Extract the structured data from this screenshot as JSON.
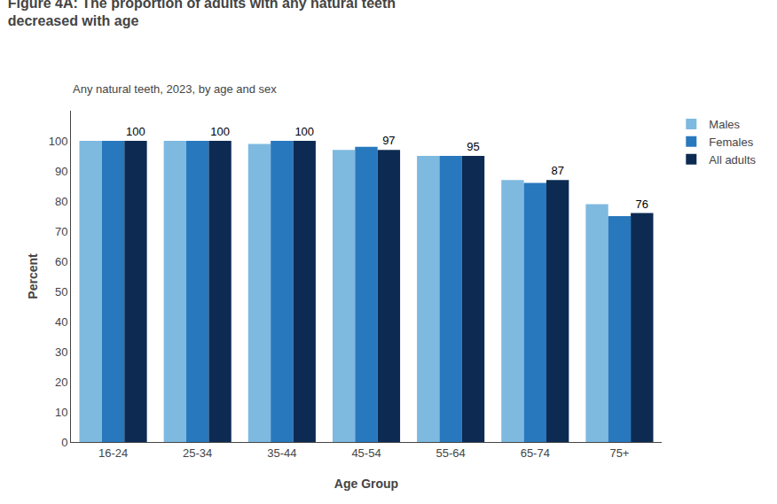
{
  "chart_data": {
    "type": "bar",
    "title": "Figure 4A: The proportion of adults with any natural teeth\ndecreased with age",
    "subtitle": "Any natural teeth, 2023, by age and sex",
    "xlabel": "Age Group",
    "ylabel": "Percent",
    "categories": [
      "16-24",
      "25-34",
      "35-44",
      "45-54",
      "55-64",
      "65-74",
      "75+"
    ],
    "series": [
      {
        "name": "Males",
        "color": "#7EB9E0",
        "values": [
          100,
          100,
          99,
          97,
          95,
          87,
          79
        ]
      },
      {
        "name": "Females",
        "color": "#2878BE",
        "values": [
          100,
          100,
          100,
          98,
          95,
          86,
          75
        ]
      },
      {
        "name": "All adults",
        "color": "#0D2B52",
        "values": [
          100,
          100,
          100,
          97,
          95,
          87,
          76
        ],
        "data_labels": true
      }
    ],
    "ylim": [
      0,
      110
    ],
    "yticks": [
      0,
      10,
      20,
      30,
      40,
      50,
      60,
      70,
      80,
      90,
      100
    ],
    "grid": false,
    "legend": "upper right"
  }
}
